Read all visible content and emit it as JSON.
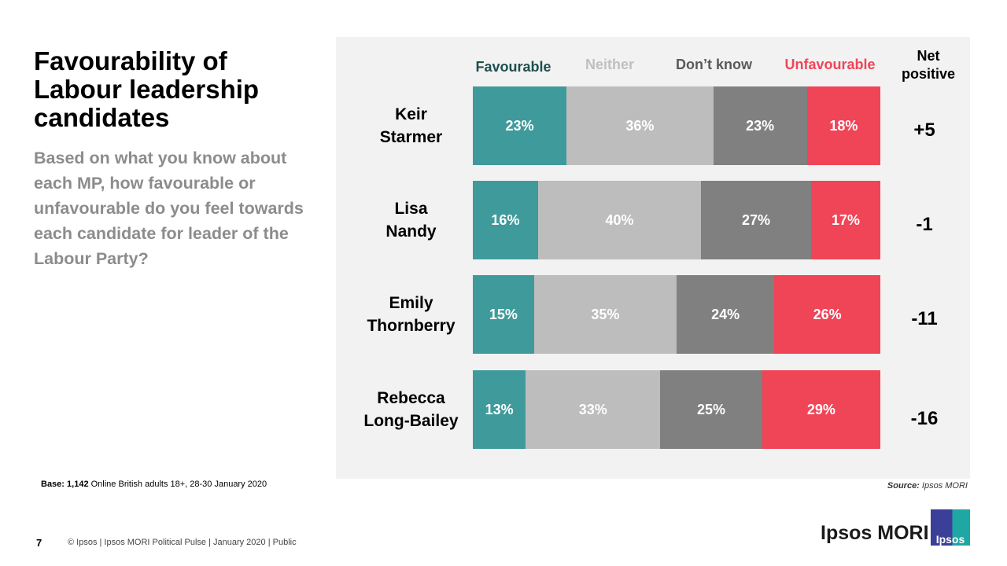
{
  "title": "Favourability of Labour leadership candidates",
  "subtitle": "Based on what you know about each MP, how favourable or unfavourable do you feel towards each candidate for leader of the Labour Party?",
  "chart_data": {
    "type": "bar",
    "orientation": "horizontal-stacked",
    "categories": [
      "Keir Starmer",
      "Lisa Nandy",
      "Emily Thornberry",
      "Rebecca Long-Bailey"
    ],
    "category_lines": [
      [
        "Keir",
        "Starmer"
      ],
      [
        "Lisa",
        "Nandy"
      ],
      [
        "Emily",
        "Thornberry"
      ],
      [
        "Rebecca",
        "Long-Bailey"
      ]
    ],
    "series": [
      {
        "name": "Favourable",
        "values": [
          23,
          16,
          15,
          13
        ],
        "color": "#3f9a9b",
        "legend_color": "#1f4e4e",
        "label_color": "#ffffff"
      },
      {
        "name": "Neither",
        "values": [
          36,
          40,
          35,
          33
        ],
        "color": "#bdbdbd",
        "legend_color": "#c0c0c0",
        "label_color": "#ffffff"
      },
      {
        "name": "Don’t know",
        "values": [
          23,
          27,
          24,
          25
        ],
        "color": "#808080",
        "legend_color": "#595959",
        "label_color": "#ffffff"
      },
      {
        "name": "Unfavourable",
        "values": [
          18,
          17,
          26,
          29
        ],
        "color": "#f04457",
        "legend_color": "#f04457",
        "label_color": "#ffffff"
      }
    ],
    "value_suffix": "%",
    "net_header": [
      "Net",
      "positive"
    ],
    "net_values": [
      "+5",
      "-1",
      "-11",
      "-16"
    ],
    "legend_placement": "top",
    "grid": false
  },
  "base": {
    "label": "Base:",
    "count": "1,142",
    "text": "Online British adults 18+,  28-30 January 2020"
  },
  "source": {
    "label": "Source:",
    "text": "Ipsos MORI"
  },
  "footer": {
    "page": "7",
    "text": "© Ipsos | Ipsos MORI  Political  Pulse | January 2020 | Public"
  },
  "brand": {
    "name": "Ipsos MORI",
    "logo_text": "Ipsos"
  }
}
